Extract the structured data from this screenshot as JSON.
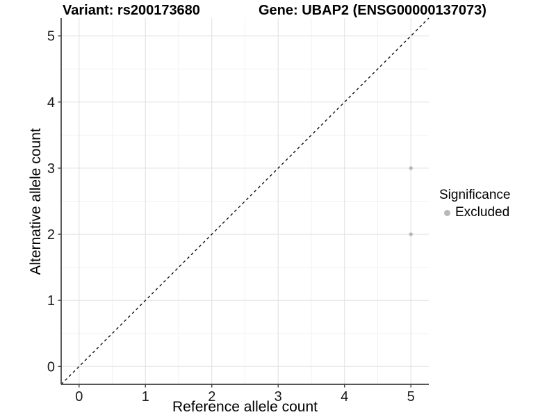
{
  "header": {
    "variant_title": "Variant: rs200173680",
    "gene_title": "Gene: UBAP2 (ENSG00000137073)"
  },
  "chart_data": {
    "type": "scatter",
    "title_left": "Variant: rs200173680",
    "title_right": "Gene: UBAP2 (ENSG00000137073)",
    "xlabel": "Reference allele count",
    "ylabel": "Alternative allele count",
    "xlim": [
      -0.27,
      5.27
    ],
    "ylim": [
      -0.27,
      5.27
    ],
    "xticks": [
      0,
      1,
      2,
      3,
      4,
      5
    ],
    "yticks": [
      0,
      1,
      2,
      3,
      4,
      5
    ],
    "minor_xticks": [
      0.5,
      1.5,
      2.5,
      3.5,
      4.5
    ],
    "minor_yticks": [
      0.5,
      1.5,
      2.5,
      3.5,
      4.5
    ],
    "grid": true,
    "identity_line": {
      "style": "dashed",
      "color": "#000000",
      "from": [
        -0.27,
        -0.27
      ],
      "to": [
        5.27,
        5.27
      ]
    },
    "series": [
      {
        "name": "Excluded",
        "color": "#b8b8b8",
        "points": [
          {
            "x": 5,
            "y": 3
          },
          {
            "x": 5,
            "y": 2
          }
        ]
      }
    ],
    "legend": {
      "title": "Significance",
      "position": "right",
      "items": [
        {
          "label": "Excluded",
          "color": "#b8b8b8"
        }
      ]
    }
  },
  "colors": {
    "background": "#ffffff",
    "grid_major": "#e4e4e4",
    "grid_minor": "#f1f1f1",
    "axis_line": "#3f3f3f",
    "tick_text": "#1a1a1a",
    "title_text": "#000000",
    "point": "#b8b8b8"
  }
}
